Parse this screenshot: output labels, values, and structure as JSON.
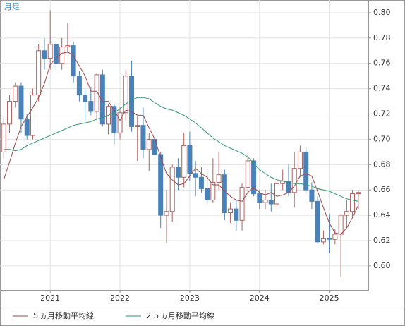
{
  "chart_data": {
    "type": "candlestick",
    "label": "月足",
    "x": [
      2020.333,
      2020.417,
      2020.5,
      2020.583,
      2020.667,
      2020.75,
      2020.833,
      2020.917,
      2021.0,
      2021.083,
      2021.167,
      2021.25,
      2021.333,
      2021.417,
      2021.5,
      2021.583,
      2021.667,
      2021.75,
      2021.833,
      2021.917,
      2022.0,
      2022.083,
      2022.167,
      2022.25,
      2022.333,
      2022.417,
      2022.5,
      2022.583,
      2022.667,
      2022.75,
      2022.833,
      2022.917,
      2023.0,
      2023.083,
      2023.167,
      2023.25,
      2023.333,
      2023.417,
      2023.5,
      2023.583,
      2023.667,
      2023.75,
      2023.833,
      2023.917,
      2024.0,
      2024.083,
      2024.167,
      2024.25,
      2024.333,
      2024.417,
      2024.5,
      2024.583,
      2024.667,
      2024.75,
      2024.833,
      2024.917,
      2025.0,
      2025.083,
      2025.167,
      2025.25,
      2025.333,
      2025.417
    ],
    "open": [
      0.69,
      0.712,
      0.73,
      0.742,
      0.716,
      0.703,
      0.735,
      0.77,
      0.764,
      0.775,
      0.76,
      0.773,
      0.774,
      0.75,
      0.735,
      0.73,
      0.722,
      0.751,
      0.712,
      0.726,
      0.705,
      0.721,
      0.75,
      0.71,
      0.711,
      0.692,
      0.7,
      0.688,
      0.64,
      0.643,
      0.678,
      0.67,
      0.695,
      0.673,
      0.67,
      0.661,
      0.652,
      0.666,
      0.672,
      0.642,
      0.645,
      0.636,
      0.662,
      0.683,
      0.657,
      0.65,
      0.652,
      0.649,
      0.665,
      0.667,
      0.658,
      0.677,
      0.69,
      0.66,
      0.651,
      0.619,
      0.622,
      0.621,
      0.625,
      0.64,
      0.643,
      0.657
    ],
    "high": [
      0.717,
      0.735,
      0.745,
      0.745,
      0.72,
      0.74,
      0.775,
      0.78,
      0.802,
      0.776,
      0.78,
      0.792,
      0.777,
      0.754,
      0.74,
      0.741,
      0.752,
      0.755,
      0.728,
      0.728,
      0.726,
      0.755,
      0.762,
      0.718,
      0.725,
      0.705,
      0.712,
      0.69,
      0.66,
      0.68,
      0.685,
      0.705,
      0.706,
      0.683,
      0.678,
      0.675,
      0.685,
      0.69,
      0.676,
      0.65,
      0.652,
      0.665,
      0.688,
      0.685,
      0.66,
      0.66,
      0.665,
      0.668,
      0.676,
      0.68,
      0.69,
      0.695,
      0.694,
      0.666,
      0.655,
      0.628,
      0.641,
      0.629,
      0.641,
      0.652,
      0.66,
      0.66
    ],
    "low": [
      0.685,
      0.705,
      0.725,
      0.705,
      0.7,
      0.7,
      0.73,
      0.755,
      0.755,
      0.755,
      0.755,
      0.768,
      0.745,
      0.73,
      0.715,
      0.719,
      0.715,
      0.71,
      0.704,
      0.696,
      0.7,
      0.715,
      0.706,
      0.683,
      0.685,
      0.675,
      0.685,
      0.63,
      0.618,
      0.635,
      0.66,
      0.662,
      0.667,
      0.655,
      0.658,
      0.648,
      0.65,
      0.66,
      0.636,
      0.634,
      0.628,
      0.628,
      0.658,
      0.655,
      0.645,
      0.645,
      0.643,
      0.646,
      0.66,
      0.655,
      0.646,
      0.67,
      0.657,
      0.645,
      0.618,
      0.617,
      0.61,
      0.617,
      0.591,
      0.63,
      0.638,
      0.645
    ],
    "close": [
      0.712,
      0.73,
      0.742,
      0.716,
      0.703,
      0.735,
      0.77,
      0.764,
      0.775,
      0.76,
      0.773,
      0.774,
      0.75,
      0.735,
      0.73,
      0.722,
      0.751,
      0.712,
      0.726,
      0.705,
      0.721,
      0.75,
      0.71,
      0.711,
      0.692,
      0.7,
      0.688,
      0.64,
      0.643,
      0.678,
      0.67,
      0.695,
      0.673,
      0.67,
      0.661,
      0.652,
      0.666,
      0.672,
      0.642,
      0.645,
      0.636,
      0.662,
      0.683,
      0.657,
      0.65,
      0.652,
      0.649,
      0.665,
      0.667,
      0.658,
      0.677,
      0.69,
      0.66,
      0.651,
      0.619,
      0.622,
      0.621,
      0.625,
      0.64,
      0.643,
      0.657,
      0.658
    ],
    "up_color": "#ffffff",
    "up_edge": "#b06060",
    "down_color": "#4a82b8",
    "series": [
      {
        "name": "５ヵ月移動平均線",
        "color": "#a04848",
        "values": [
          0.668,
          0.682,
          0.697,
          0.71,
          0.718,
          0.725,
          0.733,
          0.744,
          0.759,
          0.764,
          0.768,
          0.769,
          0.766,
          0.758,
          0.75,
          0.738,
          0.738,
          0.73,
          0.73,
          0.723,
          0.715,
          0.723,
          0.722,
          0.719,
          0.719,
          0.709,
          0.7,
          0.686,
          0.673,
          0.668,
          0.664,
          0.665,
          0.671,
          0.677,
          0.673,
          0.67,
          0.664,
          0.664,
          0.659,
          0.655,
          0.652,
          0.651,
          0.658,
          0.662,
          0.658,
          0.656,
          0.658,
          0.655,
          0.656,
          0.658,
          0.663,
          0.671,
          0.673,
          0.671,
          0.659,
          0.646,
          0.634,
          0.626,
          0.625,
          0.63,
          0.638,
          0.648
        ]
      },
      {
        "name": "２５ヵ月移動平均線",
        "color": "#2e9a6e",
        "values": [
          0.692,
          0.692,
          0.691,
          0.692,
          0.695,
          0.697,
          0.699,
          0.701,
          0.703,
          0.705,
          0.707,
          0.709,
          0.711,
          0.712,
          0.713,
          0.714,
          0.716,
          0.717,
          0.719,
          0.721,
          0.724,
          0.728,
          0.731,
          0.733,
          0.733,
          0.732,
          0.729,
          0.726,
          0.724,
          0.723,
          0.721,
          0.719,
          0.716,
          0.713,
          0.709,
          0.705,
          0.701,
          0.698,
          0.695,
          0.693,
          0.691,
          0.689,
          0.686,
          0.681,
          0.676,
          0.673,
          0.67,
          0.668,
          0.667,
          0.666,
          0.665,
          0.665,
          0.664,
          0.663,
          0.661,
          0.66,
          0.659,
          0.657,
          0.655,
          0.653,
          0.652,
          0.651
        ]
      }
    ],
    "xlim": [
      2020.28,
      2025.56
    ],
    "xticks": [
      2021,
      2022,
      2023,
      2024,
      2025
    ],
    "ylim": [
      0.581,
      0.81
    ],
    "yticks": [
      {
        "value": 0.6,
        "label": "0.60"
      },
      {
        "value": 0.62,
        "label": "0.62"
      },
      {
        "value": 0.64,
        "label": "0.64"
      },
      {
        "value": 0.66,
        "label": "0.66"
      },
      {
        "value": 0.68,
        "label": "0.68"
      },
      {
        "value": 0.7,
        "label": "0.70"
      },
      {
        "value": 0.72,
        "label": "0.72"
      },
      {
        "value": 0.74,
        "label": "0.74"
      },
      {
        "value": 0.76,
        "label": "0.76"
      },
      {
        "value": 0.78,
        "label": "0.78"
      },
      {
        "value": 0.8,
        "label": "0.80"
      }
    ],
    "grid": true
  }
}
